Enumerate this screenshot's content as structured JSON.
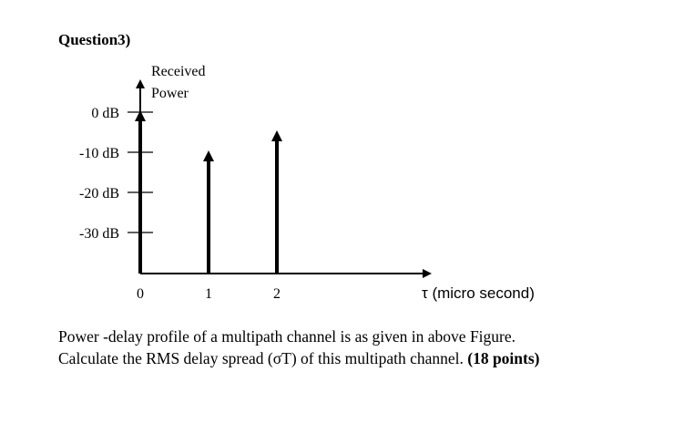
{
  "question_label": "Question3)",
  "chart_data": {
    "type": "stem",
    "y_axis_label_line1": "Received",
    "y_axis_label_line2": "Power",
    "x_axis_label": "τ (micro second)",
    "y_ticks": [
      "0 dB",
      "-10 dB",
      "-20 dB",
      "-30 dB"
    ],
    "y_tick_values": [
      0,
      -10,
      -20,
      -30
    ],
    "x_ticks": [
      "0",
      "1",
      "2"
    ],
    "x_tick_values": [
      0,
      1,
      2
    ],
    "ylim": [
      -40,
      0
    ],
    "xlim": [
      0,
      4.2
    ],
    "impulses": [
      {
        "delay_us": 0,
        "power_db": 0
      },
      {
        "delay_us": 1,
        "power_db": -10
      },
      {
        "delay_us": 2,
        "power_db": -5
      }
    ]
  },
  "caption": {
    "line1": "Power -delay profile of a multipath channel is as given in above Figure.",
    "line2_text": "Calculate the RMS delay spread (σT) of this multipath channel.",
    "points": "(18 points)"
  }
}
